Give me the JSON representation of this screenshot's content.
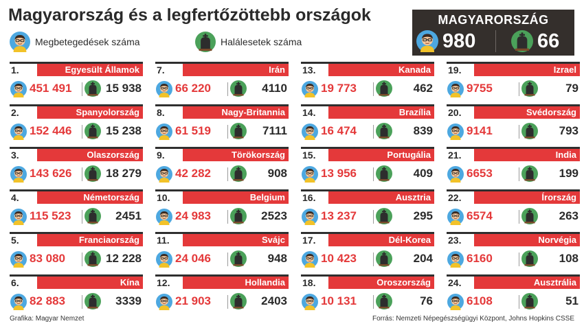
{
  "title": "Magyarország és a legfertőzöttebb országok",
  "legend": {
    "cases_label": "Megbetegedések száma",
    "deaths_label": "Halálesetek száma"
  },
  "hungary": {
    "label": "MAGYARORSZÁG",
    "cases": "980",
    "deaths": "66"
  },
  "icons": {
    "cases": "person-face-icon",
    "deaths": "grave-cross-icon"
  },
  "colors": {
    "accent_red": "#e4393a",
    "dark": "#342f2c",
    "face_bg": "#4da8e0",
    "skin": "#f6c79a",
    "hair": "#3a2a22",
    "grave_bg": "#4ba15a"
  },
  "columns": [
    {
      "entries": [
        {
          "rank": "1.",
          "country": "Egyesült Államok",
          "cases": "451 491",
          "deaths": "15 938"
        },
        {
          "rank": "2.",
          "country": "Spanyolország",
          "cases": "152 446",
          "deaths": "15 238"
        },
        {
          "rank": "3.",
          "country": "Olaszország",
          "cases": "143 626",
          "deaths": "18 279"
        },
        {
          "rank": "4.",
          "country": "Németország",
          "cases": "115 523",
          "deaths": "2451"
        },
        {
          "rank": "5.",
          "country": "Franciaország",
          "cases": "83 080",
          "deaths": "12 228"
        },
        {
          "rank": "6.",
          "country": "Kína",
          "cases": "82 883",
          "deaths": "3339"
        }
      ]
    },
    {
      "entries": [
        {
          "rank": "7.",
          "country": "Irán",
          "cases": "66 220",
          "deaths": "4110"
        },
        {
          "rank": "8.",
          "country": "Nagy-Britannia",
          "cases": "61 519",
          "deaths": "7111"
        },
        {
          "rank": "9.",
          "country": "Törökország",
          "cases": "42 282",
          "deaths": "908"
        },
        {
          "rank": "10.",
          "country": "Belgium",
          "cases": "24 983",
          "deaths": "2523"
        },
        {
          "rank": "11.",
          "country": "Svájc",
          "cases": "24 046",
          "deaths": "948"
        },
        {
          "rank": "12.",
          "country": "Hollandia",
          "cases": "21 903",
          "deaths": "2403"
        }
      ]
    },
    {
      "entries": [
        {
          "rank": "13.",
          "country": "Kanada",
          "cases": "19 773",
          "deaths": "462"
        },
        {
          "rank": "14.",
          "country": "Brazília",
          "cases": "16 474",
          "deaths": "839"
        },
        {
          "rank": "15.",
          "country": "Portugália",
          "cases": "13 956",
          "deaths": "409"
        },
        {
          "rank": "16.",
          "country": "Ausztria",
          "cases": "13 237",
          "deaths": "295"
        },
        {
          "rank": "17.",
          "country": "Dél-Korea",
          "cases": "10 423",
          "deaths": "204"
        },
        {
          "rank": "18.",
          "country": "Oroszország",
          "cases": "10 131",
          "deaths": "76"
        }
      ]
    },
    {
      "entries": [
        {
          "rank": "19.",
          "country": "Izrael",
          "cases": "9755",
          "deaths": "79"
        },
        {
          "rank": "20.",
          "country": "Svédország",
          "cases": "9141",
          "deaths": "793"
        },
        {
          "rank": "21.",
          "country": "India",
          "cases": "6653",
          "deaths": "199"
        },
        {
          "rank": "22.",
          "country": "Írország",
          "cases": "6574",
          "deaths": "263"
        },
        {
          "rank": "23.",
          "country": "Norvégia",
          "cases": "6160",
          "deaths": "108"
        },
        {
          "rank": "24.",
          "country": "Ausztrália",
          "cases": "6108",
          "deaths": "51"
        }
      ]
    }
  ],
  "footer": {
    "credit": "Grafika: Magyar Nemzet",
    "source": "Forrás: Nemzeti Népegészségügyi Központ, Johns Hopkins CSSE"
  }
}
